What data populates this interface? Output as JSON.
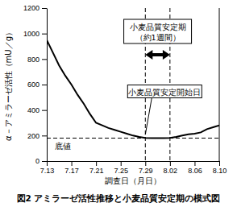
{
  "chart_data": {
    "type": "line",
    "title": "図2 アミラーゼ活性推移と小麦品質安定期の模式図",
    "x_label": "調査日（月日）",
    "y_label": "α－アミラーゼ活性（mU／g）",
    "categories": [
      "7.13",
      null,
      null,
      null,
      "7.17",
      null,
      null,
      null,
      "7.21",
      null,
      null,
      null,
      "7.25",
      null,
      null,
      null,
      "7.29",
      null,
      null,
      null,
      "8.02",
      null,
      null,
      null,
      "8.06",
      null,
      null,
      null,
      "8.10"
    ],
    "values": [
      950,
      850,
      750,
      670,
      600,
      520,
      450,
      370,
      300,
      280,
      260,
      245,
      230,
      215,
      200,
      190,
      182,
      180,
      180,
      180,
      182,
      190,
      200,
      210,
      215,
      225,
      250,
      265,
      280
    ],
    "color": "#000000",
    "ylim": [
      0,
      1200
    ],
    "yticks": [
      0,
      200,
      400,
      600,
      800,
      1000,
      1200
    ],
    "grid": false,
    "annotations": [
      {
        "text": "底値",
        "y": 180
      },
      {
        "text": "小麦品質安定開始日",
        "x": "7.29"
      },
      {
        "text": [
          "小麦品質安定期",
          "（約1週間）"
        ],
        "x": [
          "7.29",
          "8.02"
        ]
      }
    ]
  }
}
